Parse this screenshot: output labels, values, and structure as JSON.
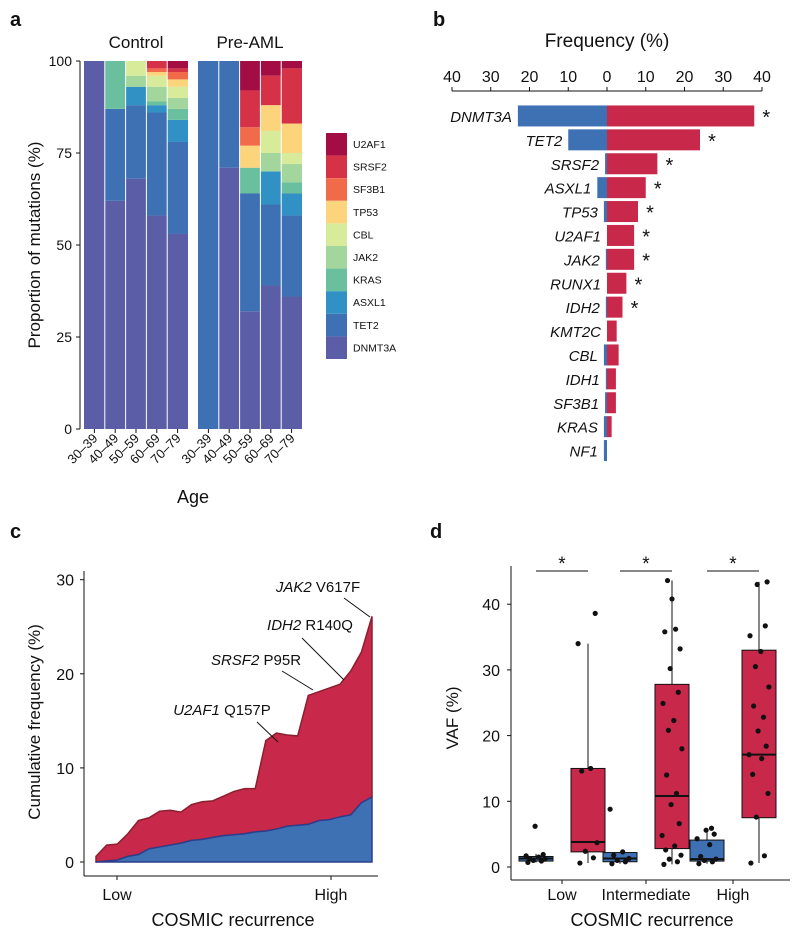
{
  "chart_data": [
    {
      "panel": "a",
      "type": "bar",
      "stacked": true,
      "ylabel": "Proportion of mutations (%)",
      "xlabel": "Age",
      "yticks": [
        "0",
        "25",
        "50",
        "75",
        "100"
      ],
      "ylim": [
        0,
        100
      ],
      "groups": [
        "Control",
        "Pre-AML"
      ],
      "categories": [
        "30–39",
        "40–49",
        "50–59",
        "60–69",
        "70–79"
      ],
      "legend": [
        "U2AF1",
        "SRSF2",
        "SF3B1",
        "TP53",
        "CBL",
        "JAK2",
        "KRAS",
        "ASXL1",
        "TET2",
        "DNMT3A"
      ],
      "colors": {
        "DNMT3A": "#5b5ea6",
        "TET2": "#3e70b4",
        "ASXL1": "#3291c4",
        "KRAS": "#6abf9e",
        "JAK2": "#a3d69c",
        "CBL": "#d8eb9b",
        "TP53": "#fbd47c",
        "SF3B1": "#f16a4a",
        "SRSF2": "#d53248",
        "U2AF1": "#a40d43"
      },
      "series": [
        {
          "group": "Control",
          "category": "30–39",
          "values": {
            "DNMT3A": 100
          }
        },
        {
          "group": "Control",
          "category": "40–49",
          "values": {
            "DNMT3A": 62,
            "TET2": 25,
            "KRAS": 13
          }
        },
        {
          "group": "Control",
          "category": "50–59",
          "values": {
            "DNMT3A": 68,
            "TET2": 20,
            "ASXL1": 5,
            "CBL": 4,
            "JAK2": 3
          }
        },
        {
          "group": "Control",
          "category": "60–69",
          "values": {
            "DNMT3A": 58,
            "TET2": 28,
            "ASXL1": 2,
            "KRAS": 1,
            "JAK2": 4,
            "CBL": 3,
            "TP53": 1,
            "SF3B1": 1,
            "SRSF2": 2
          }
        },
        {
          "group": "Control",
          "category": "70–79",
          "values": {
            "DNMT3A": 53,
            "TET2": 25,
            "ASXL1": 6,
            "KRAS": 3,
            "JAK2": 3,
            "CBL": 3,
            "TP53": 2,
            "SF3B1": 2,
            "SRSF2": 1,
            "U2AF1": 2
          }
        },
        {
          "group": "Pre-AML",
          "category": "30–39",
          "values": {
            "TET2": 100
          }
        },
        {
          "group": "Pre-AML",
          "category": "40–49",
          "values": {
            "DNMT3A": 71,
            "TET2": 29
          }
        },
        {
          "group": "Pre-AML",
          "category": "50–59",
          "values": {
            "DNMT3A": 32,
            "TET2": 32,
            "KRAS": 7,
            "TP53": 6,
            "SF3B1": 5,
            "SRSF2": 10,
            "U2AF1": 8
          }
        },
        {
          "group": "Pre-AML",
          "category": "60–69",
          "values": {
            "DNMT3A": 39,
            "TET2": 22,
            "ASXL1": 9,
            "JAK2": 5,
            "CBL": 6,
            "TP53": 7,
            "SRSF2": 8,
            "U2AF1": 4
          }
        },
        {
          "group": "Pre-AML",
          "category": "70–79",
          "values": {
            "DNMT3A": 36,
            "TET2": 22,
            "ASXL1": 6,
            "KRAS": 3,
            "JAK2": 5,
            "CBL": 3,
            "TP53": 8,
            "SRSF2": 15,
            "U2AF1": 2
          }
        }
      ]
    },
    {
      "panel": "b",
      "type": "bar",
      "orientation": "horizontal",
      "title": "Frequency (%)",
      "xticks": [
        "40",
        "30",
        "20",
        "10",
        "0",
        "10",
        "20",
        "30",
        "40"
      ],
      "xlim": [
        -40,
        40
      ],
      "categories": [
        "DNMT3A",
        "TET2",
        "SRSF2",
        "ASXL1",
        "TP53",
        "U2AF1",
        "JAK2",
        "RUNX1",
        "IDH2",
        "KMT2C",
        "CBL",
        "IDH1",
        "SF3B1",
        "KRAS",
        "NF1"
      ],
      "series": [
        {
          "name": "Control",
          "color": "#3e70b4",
          "values": [
            23,
            10,
            0.5,
            2.5,
            0.8,
            0,
            0.3,
            0,
            0.3,
            0,
            0.8,
            0.3,
            0.5,
            0.8,
            0.8
          ]
        },
        {
          "name": "Pre-AML",
          "color": "#c8284a",
          "values": [
            38,
            24,
            13,
            10,
            8,
            7,
            7,
            5,
            4,
            2.5,
            3,
            2.3,
            2.3,
            1.2,
            0
          ]
        }
      ],
      "significance": [
        "*",
        "*",
        "*",
        "*",
        "*",
        "*",
        "*",
        "*",
        "*",
        "",
        "",
        "",
        "",
        "",
        ""
      ]
    },
    {
      "panel": "c",
      "type": "area",
      "stacked": true,
      "xlabel": "COSMIC recurrence",
      "ylabel": "Cumulative frequency (%)",
      "xticks": [
        "Low",
        "High"
      ],
      "yticks": [
        "0",
        "10",
        "20",
        "30"
      ],
      "ylim": [
        -1,
        31
      ],
      "series": [
        {
          "name": "Control",
          "color": "#3e70b4",
          "values": [
            0,
            0.1,
            0.2,
            0.6,
            0.8,
            1.4,
            1.6,
            1.8,
            2.0,
            2.3,
            2.4,
            2.6,
            2.8,
            2.9,
            3.0,
            3.2,
            3.3,
            3.5,
            3.8,
            3.9,
            4.0,
            4.4,
            4.5,
            4.8,
            5.0,
            6.3,
            6.9
          ]
        },
        {
          "name": "Pre-AML",
          "color": "#c8284a",
          "values": [
            0.6,
            1.7,
            1.7,
            2.4,
            3.6,
            3.3,
            3.8,
            3.7,
            3.3,
            3.8,
            4.0,
            3.9,
            4.2,
            4.6,
            4.8,
            4.6,
            9.6,
            10.2,
            9.7,
            9.5,
            13.7,
            13.7,
            14.0,
            14.1,
            15.3,
            16.0,
            19.2
          ]
        }
      ],
      "annotations": [
        {
          "gene": "U2AF1",
          "variant": "Q157P"
        },
        {
          "gene": "SRSF2",
          "variant": "P95R"
        },
        {
          "gene": "IDH2",
          "variant": "R140Q"
        },
        {
          "gene": "JAK2",
          "variant": "V617F"
        }
      ]
    },
    {
      "panel": "d",
      "type": "box",
      "xlabel": "COSMIC recurrence",
      "ylabel": "VAF (%)",
      "categories": [
        "Low",
        "Intermediate",
        "High"
      ],
      "yticks": [
        "0",
        "10",
        "20",
        "30",
        "40"
      ],
      "ylim": [
        -1,
        46
      ],
      "significance": [
        "*",
        "*",
        "*"
      ],
      "series": [
        {
          "name": "Control",
          "color": "#3e70b4",
          "boxes": [
            {
              "min": 0.7,
              "q1": 0.9,
              "median": 1.3,
              "q3": 1.6,
              "max": 2.0,
              "points": [
                0.7,
                0.9,
                1.0,
                1.2,
                1.3,
                1.5,
                1.7,
                1.9,
                6.2
              ]
            },
            {
              "min": 0.5,
              "q1": 0.8,
              "median": 1.3,
              "q3": 2.2,
              "max": 2.3,
              "points": [
                0.5,
                0.8,
                1.0,
                1.3,
                1.8,
                2.3,
                8.8
              ]
            },
            {
              "min": 0.5,
              "q1": 0.9,
              "median": 1.2,
              "q3": 4.1,
              "max": 5.9,
              "points": [
                0.5,
                0.8,
                1.0,
                1.2,
                1.6,
                3.4,
                4.3,
                5.0,
                5.6,
                5.9
              ]
            }
          ]
        },
        {
          "name": "Pre-AML",
          "color": "#c8284a",
          "boxes": [
            {
              "min": 0.6,
              "q1": 2.3,
              "median": 3.8,
              "q3": 15.0,
              "max": 34.0,
              "points": [
                0.6,
                1.4,
                2.4,
                3.7,
                14.6,
                15.0,
                34.0,
                38.6
              ]
            },
            {
              "min": 0.4,
              "q1": 2.8,
              "median": 10.8,
              "q3": 27.8,
              "max": 43.6,
              "points": [
                0.4,
                0.8,
                1.2,
                1.8,
                2.6,
                3.2,
                4.8,
                6.6,
                9.5,
                11.2,
                14.0,
                18.0,
                20.8,
                22.3,
                24.9,
                26.6,
                30.2,
                33.2,
                35.8,
                36.2,
                40.8,
                43.6
              ]
            },
            {
              "min": 0.6,
              "q1": 7.5,
              "median": 17.1,
              "q3": 33.0,
              "max": 43.4,
              "points": [
                0.6,
                1.7,
                7.6,
                11.2,
                14.1,
                16.5,
                17.1,
                18.4,
                20.7,
                22.8,
                24.5,
                27.4,
                30.5,
                32.8,
                35.2,
                36.7,
                43.0,
                43.4
              ]
            }
          ]
        }
      ]
    }
  ]
}
